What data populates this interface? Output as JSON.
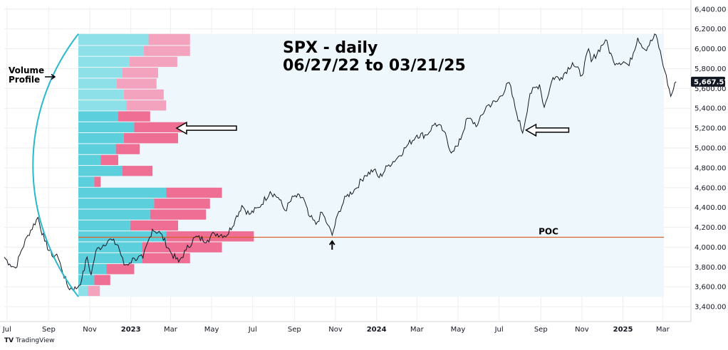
{
  "chart_data": {
    "type": "line",
    "title_lines": [
      "SPX - daily",
      "06/27/22 to 03/21/25"
    ],
    "x_ticks": [
      {
        "label": "Jul",
        "date": "2022-07-01",
        "bold": false
      },
      {
        "label": "Sep",
        "date": "2022-09-01",
        "bold": false
      },
      {
        "label": "Nov",
        "date": "2022-11-01",
        "bold": false
      },
      {
        "label": "2023",
        "date": "2023-01-01",
        "bold": true
      },
      {
        "label": "Mar",
        "date": "2023-03-01",
        "bold": false
      },
      {
        "label": "May",
        "date": "2023-05-01",
        "bold": false
      },
      {
        "label": "Jul",
        "date": "2023-07-01",
        "bold": false
      },
      {
        "label": "Sep",
        "date": "2023-09-01",
        "bold": false
      },
      {
        "label": "Nov",
        "date": "2023-11-01",
        "bold": false
      },
      {
        "label": "2024",
        "date": "2024-01-01",
        "bold": true
      },
      {
        "label": "Mar",
        "date": "2024-03-01",
        "bold": false
      },
      {
        "label": "May",
        "date": "2024-05-01",
        "bold": false
      },
      {
        "label": "Jul",
        "date": "2024-07-01",
        "bold": false
      },
      {
        "label": "Sep",
        "date": "2024-09-01",
        "bold": false
      },
      {
        "label": "Nov",
        "date": "2024-11-01",
        "bold": false
      },
      {
        "label": "2025",
        "date": "2025-01-01",
        "bold": true
      },
      {
        "label": "Mar",
        "date": "2025-03-01",
        "bold": false
      }
    ],
    "y_ticks": [
      "3,400.00",
      "3,600.00",
      "3,800.00",
      "4,000.00",
      "4,200.00",
      "4,400.00",
      "4,600.00",
      "4,800.00",
      "5,000.00",
      "5,200.00",
      "5,400.00",
      "5,600.00",
      "5,800.00",
      "6,000.00",
      "6,200.00",
      "6,400.00"
    ],
    "ylim": [
      3250,
      6420
    ],
    "xlim": [
      "2022-06-27",
      "2025-04-12"
    ],
    "series": [
      {
        "points": [
          [
            "2022-06-27",
            3900
          ],
          [
            "2022-07-05",
            3830
          ],
          [
            "2022-07-14",
            3790
          ],
          [
            "2022-07-22",
            3960
          ],
          [
            "2022-08-01",
            4120
          ],
          [
            "2022-08-16",
            4300
          ],
          [
            "2022-08-26",
            4060
          ],
          [
            "2022-09-06",
            3910
          ],
          [
            "2022-09-13",
            3930
          ],
          [
            "2022-09-20",
            3790
          ],
          [
            "2022-09-30",
            3590
          ],
          [
            "2022-10-12",
            3580
          ],
          [
            "2022-10-20",
            3670
          ],
          [
            "2022-10-28",
            3900
          ],
          [
            "2022-11-03",
            3720
          ],
          [
            "2022-11-10",
            3960
          ],
          [
            "2022-11-30",
            4080
          ],
          [
            "2022-12-13",
            4020
          ],
          [
            "2022-12-22",
            3820
          ],
          [
            "2022-12-30",
            3840
          ],
          [
            "2023-01-06",
            3890
          ],
          [
            "2023-01-19",
            3890
          ],
          [
            "2023-02-02",
            4180
          ],
          [
            "2023-02-14",
            4140
          ],
          [
            "2023-03-01",
            3950
          ],
          [
            "2023-03-13",
            3850
          ],
          [
            "2023-03-24",
            3970
          ],
          [
            "2023-04-06",
            4100
          ],
          [
            "2023-04-25",
            4070
          ],
          [
            "2023-05-05",
            4140
          ],
          [
            "2023-05-24",
            4120
          ],
          [
            "2023-06-05",
            4280
          ],
          [
            "2023-06-15",
            4420
          ],
          [
            "2023-06-26",
            4330
          ],
          [
            "2023-07-10",
            4400
          ],
          [
            "2023-07-27",
            4560
          ],
          [
            "2023-08-08",
            4500
          ],
          [
            "2023-08-18",
            4370
          ],
          [
            "2023-08-31",
            4510
          ],
          [
            "2023-09-14",
            4500
          ],
          [
            "2023-09-22",
            4320
          ],
          [
            "2023-10-03",
            4230
          ],
          [
            "2023-10-12",
            4350
          ],
          [
            "2023-10-20",
            4230
          ],
          [
            "2023-10-27",
            4120
          ],
          [
            "2023-11-06",
            4360
          ],
          [
            "2023-11-17",
            4510
          ],
          [
            "2023-12-01",
            4590
          ],
          [
            "2023-12-14",
            4720
          ],
          [
            "2023-12-28",
            4780
          ],
          [
            "2024-01-05",
            4700
          ],
          [
            "2024-01-19",
            4830
          ],
          [
            "2024-02-01",
            4900
          ],
          [
            "2024-02-15",
            5020
          ],
          [
            "2024-03-01",
            5130
          ],
          [
            "2024-03-15",
            5130
          ],
          [
            "2024-03-28",
            5250
          ],
          [
            "2024-04-10",
            5170
          ],
          [
            "2024-04-19",
            4970
          ],
          [
            "2024-05-01",
            5020
          ],
          [
            "2024-05-15",
            5300
          ],
          [
            "2024-05-30",
            5230
          ],
          [
            "2024-06-12",
            5420
          ],
          [
            "2024-06-28",
            5470
          ],
          [
            "2024-07-16",
            5660
          ],
          [
            "2024-07-25",
            5400
          ],
          [
            "2024-08-05",
            5150
          ],
          [
            "2024-08-16",
            5550
          ],
          [
            "2024-08-30",
            5640
          ],
          [
            "2024-09-06",
            5410
          ],
          [
            "2024-09-19",
            5710
          ],
          [
            "2024-10-01",
            5710
          ],
          [
            "2024-10-18",
            5860
          ],
          [
            "2024-11-01",
            5730
          ],
          [
            "2024-11-11",
            6000
          ],
          [
            "2024-11-15",
            5870
          ],
          [
            "2024-12-06",
            6090
          ],
          [
            "2024-12-18",
            5870
          ],
          [
            "2025-01-02",
            5870
          ],
          [
            "2025-01-10",
            5830
          ],
          [
            "2025-01-23",
            6110
          ],
          [
            "2025-02-03",
            5990
          ],
          [
            "2025-02-19",
            6140
          ],
          [
            "2025-03-04",
            5780
          ],
          [
            "2025-03-13",
            5520
          ],
          [
            "2025-03-21",
            5667.57
          ]
        ]
      }
    ],
    "last_value_label": "5,667.57",
    "poc": {
      "label": "POC",
      "value": 4100
    },
    "volume_profile": {
      "label": "Volume Profile",
      "range": [
        3500,
        6150
      ],
      "rows": [
        {
          "low": 3500,
          "high": 3610,
          "up": 1.2,
          "down": 1.5,
          "light": true
        },
        {
          "low": 3610,
          "high": 3720,
          "up": 2.0,
          "down": 2.0,
          "light": false
        },
        {
          "low": 3720,
          "high": 3830,
          "up": 3.5,
          "down": 3.5,
          "light": false
        },
        {
          "low": 3830,
          "high": 3940,
          "up": 8.0,
          "down": 6.0,
          "light": false
        },
        {
          "low": 3940,
          "high": 4050,
          "up": 8.0,
          "down": 10.0,
          "light": false
        },
        {
          "low": 4050,
          "high": 4160,
          "up": 11.0,
          "down": 11.0,
          "light": false
        },
        {
          "low": 4160,
          "high": 4270,
          "up": 6.5,
          "down": 6.0,
          "light": false
        },
        {
          "low": 4270,
          "high": 4380,
          "up": 9.0,
          "down": 7.0,
          "light": false
        },
        {
          "low": 4380,
          "high": 4490,
          "up": 9.5,
          "down": 7.0,
          "light": false
        },
        {
          "low": 4490,
          "high": 4600,
          "up": 11.0,
          "down": 7.0,
          "light": false
        },
        {
          "low": 4600,
          "high": 4710,
          "up": 2.0,
          "down": 0.8,
          "light": false
        },
        {
          "low": 4710,
          "high": 4820,
          "up": 5.5,
          "down": 3.8,
          "light": false
        },
        {
          "low": 4820,
          "high": 4930,
          "up": 2.8,
          "down": 2.2,
          "light": false
        },
        {
          "low": 4930,
          "high": 5040,
          "up": 4.7,
          "down": 3.0,
          "light": false
        },
        {
          "low": 5040,
          "high": 5150,
          "up": 5.7,
          "down": 6.8,
          "light": false
        },
        {
          "low": 5150,
          "high": 5260,
          "up": 7.0,
          "down": 6.5,
          "light": false
        },
        {
          "low": 5260,
          "high": 5370,
          "up": 5.0,
          "down": 4.0,
          "light": false
        },
        {
          "low": 5370,
          "high": 5480,
          "up": 6.0,
          "down": 5.0,
          "light": true
        },
        {
          "low": 5480,
          "high": 5590,
          "up": 5.7,
          "down": 5.0,
          "light": true
        },
        {
          "low": 5590,
          "high": 5700,
          "up": 4.8,
          "down": 5.0,
          "light": true
        },
        {
          "low": 5700,
          "high": 5810,
          "up": 5.5,
          "down": 4.5,
          "light": true
        },
        {
          "low": 5810,
          "high": 5920,
          "up": 6.4,
          "down": 6.0,
          "light": true
        },
        {
          "low": 5920,
          "high": 6030,
          "up": 8.2,
          "down": 5.8,
          "light": true
        },
        {
          "low": 6030,
          "high": 6150,
          "up": 8.8,
          "down": 5.2,
          "light": true
        }
      ]
    },
    "arrows": [
      {
        "kind": "hollow-left",
        "at_date": "2023-03-10",
        "value": 5200
      },
      {
        "kind": "hollow-left",
        "at_date": "2024-08-10",
        "value": 5180
      },
      {
        "kind": "up",
        "at_date": "2023-10-27",
        "value": 4060
      }
    ],
    "colors": {
      "price": "#131722",
      "profile_up": "#5ccfdc",
      "profile_up_light": "#8de0e8",
      "profile_down": "#ef6f94",
      "profile_down_light": "#f3a3bd",
      "profile_bg": "#eef8fc",
      "poc": "#d9622b",
      "bracket": "#29b9cc",
      "label_bg": "#131722",
      "grid": "#eeeeee"
    },
    "grid": true,
    "legend": "none"
  },
  "footer": {
    "brand_logo": "TV",
    "brand": "TradingView"
  }
}
